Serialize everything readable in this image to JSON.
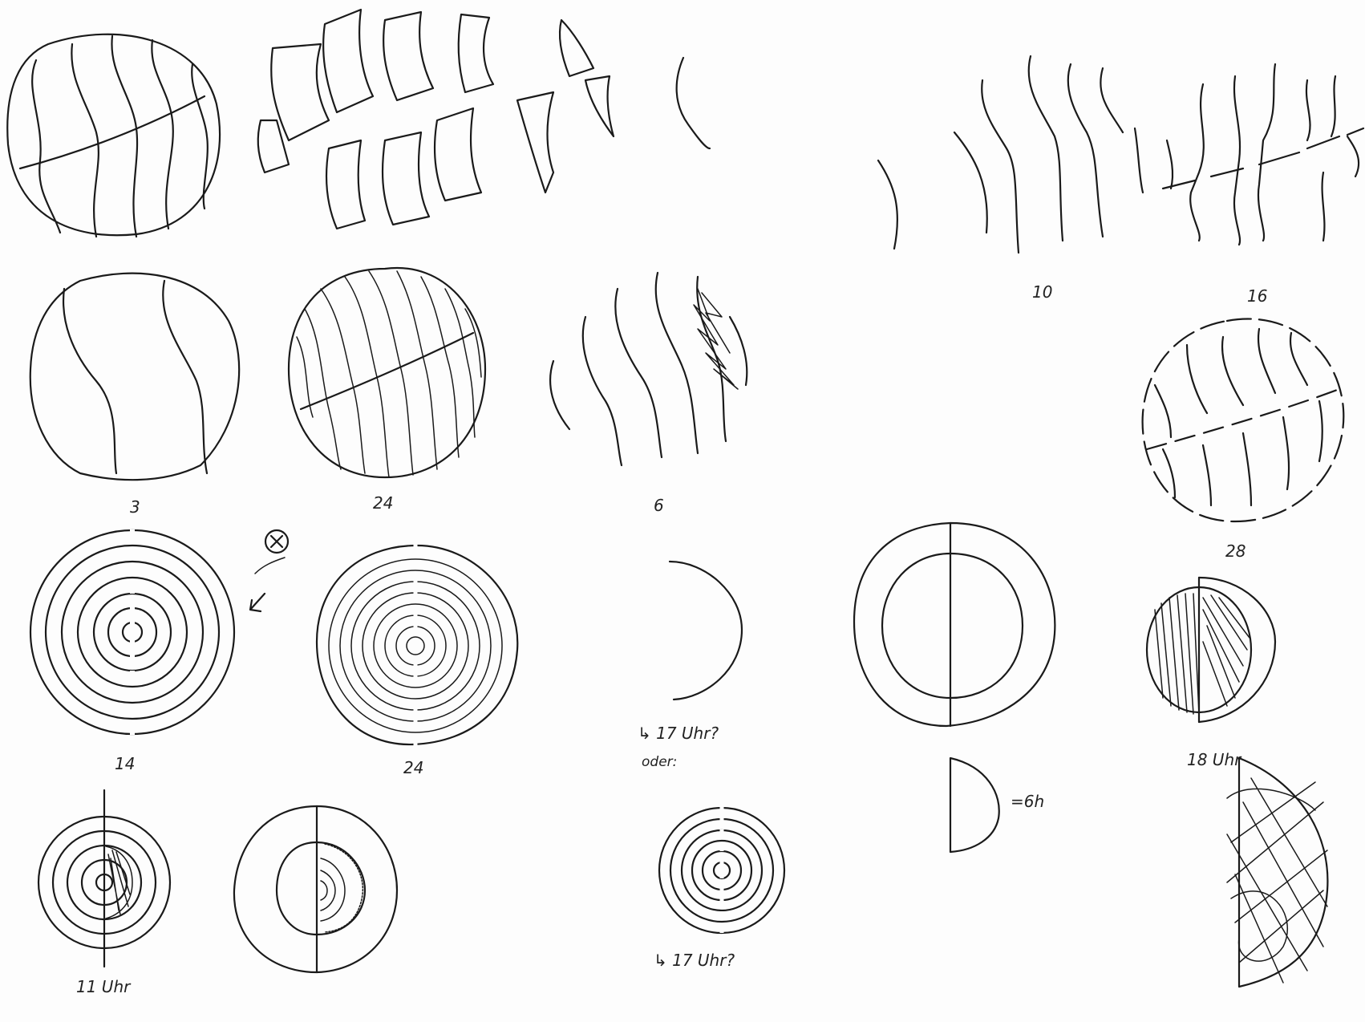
{
  "labels": {
    "l10": "10",
    "l16": "16",
    "l3": "3",
    "l24a": "24",
    "l6": "6",
    "l28": "28",
    "l14": "14",
    "l24b": "24",
    "l17uhr_a": "↳ 17 Uhr?",
    "l_oder": "oder:",
    "l18uhr": "18 Uhr",
    "l6h": "=6h",
    "l11uhr": "11 Uhr",
    "l17uhr_b": "↳ 17 Uhr?"
  }
}
